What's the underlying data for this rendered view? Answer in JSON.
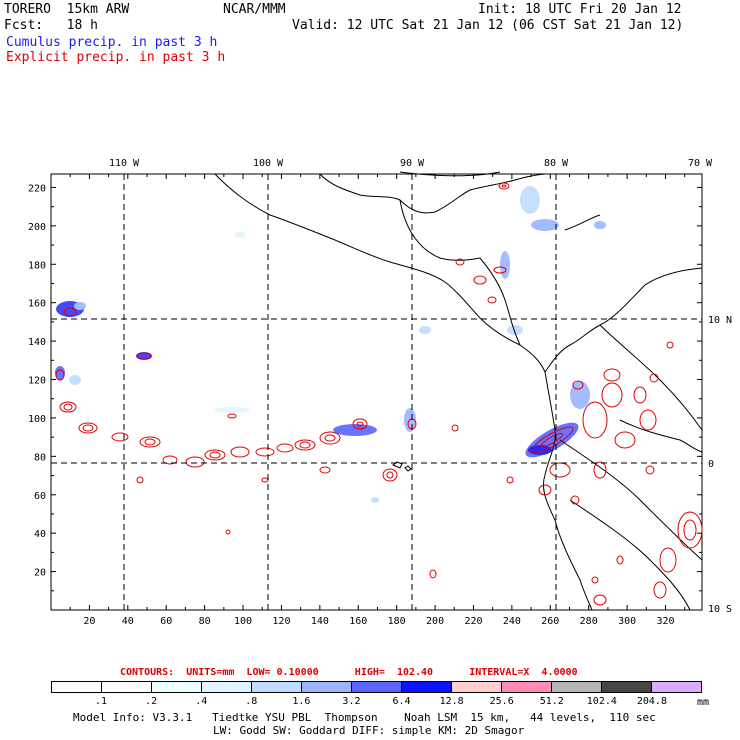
{
  "header": {
    "model": "TORERO  15km ARW",
    "org": "NCAR/MMM",
    "init": "Init: 18 UTC Fri 20 Jan 12",
    "fcst": "Fcst:   18 h",
    "valid": "Valid: 12 UTC Sat 21 Jan 12 (06 CST Sat 21 Jan 12)",
    "field1": "Cumulus precip. in past 3 h",
    "field2": "Explicit precip. in past 3 h"
  },
  "map": {
    "lon_labels": [
      "110 W",
      "100 W",
      "90 W",
      "80 W",
      "70 W"
    ],
    "lat_labels": [
      "10 N",
      "0",
      "10 S"
    ],
    "x_ticks": [
      "20",
      "40",
      "60",
      "80",
      "100",
      "120",
      "140",
      "160",
      "180",
      "200",
      "220",
      "240",
      "260",
      "280",
      "300",
      "320"
    ],
    "y_ticks": [
      "220",
      "200",
      "180",
      "160",
      "140",
      "120",
      "100",
      "80",
      "60",
      "40",
      "20"
    ]
  },
  "contours": "CONTOURS:  UNITS=mm  LOW= 0.10000      HIGH=  102.40      INTERVAL=X  4.0000",
  "colorbar": {
    "labels": [
      ".1",
      ".2",
      ".4",
      ".8",
      "1.6",
      "3.2",
      "6.4",
      "12.8",
      "25.6",
      "51.2",
      "102.4",
      "204.8"
    ],
    "units": "mm",
    "colors": [
      "#ffffff",
      "#ffffff",
      "#f0ffff",
      "#e0f5ff",
      "#c0dcff",
      "#9ab4ff",
      "#5a64ff",
      "#0a14ff",
      "#ffd0d0",
      "#ff8cb4",
      "#b4b4b4",
      "#464646",
      "#dcaaff"
    ]
  },
  "footer": {
    "line1": "Model Info: V3.3.1   Tiedtke YSU PBL  Thompson    Noah LSM  15 km,   44 levels,  110 sec",
    "line2": "LW: Godd SW: Goddard DIFF: simple KM: 2D Smagor"
  }
}
